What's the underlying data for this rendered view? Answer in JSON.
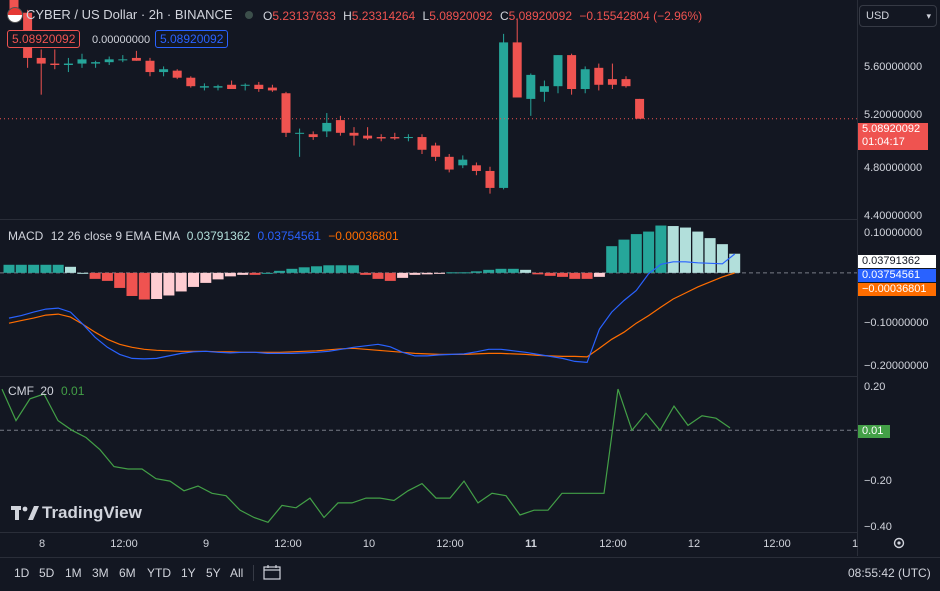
{
  "header": {
    "symbol_title": "CYBER / US Dollar · 2h · BINANCE",
    "o_label": "O",
    "o_value": "5.23137633",
    "h_label": "H",
    "h_value": "5.23314264",
    "l_label": "L",
    "l_value": "5.08920092",
    "c_label": "C",
    "c_value": "5.08920092",
    "change": "−0.15542804 (−2.96%)",
    "sell_price": "5.08920092",
    "spread": "0.00000000",
    "buy_price": "5.08920092",
    "currency": "USD"
  },
  "colors": {
    "background": "#131722",
    "up": "#26a69a",
    "down": "#ef5350",
    "macd_line": "#2962ff",
    "signal_line": "#ff6d00",
    "cmf_line": "#43a047",
    "hist_light_up": "#b2dfdb",
    "hist_light_down": "#ffcdd2"
  },
  "price_axis": {
    "ticks": [
      "5.60000000",
      "5.20000000",
      "4.80000000",
      "4.40000000"
    ],
    "last_price": "5.08920092",
    "countdown": "01:04:17"
  },
  "macd": {
    "label": "MACD",
    "params": "12 26 close 9 EMA EMA",
    "hist_value": "0.03791362",
    "macd_value": "0.03754561",
    "signal_value": "−0.00036801",
    "ticks": [
      "0.10000000",
      "−0.10000000",
      "−0.20000000"
    ]
  },
  "cmf": {
    "label": "CMF",
    "params": "20",
    "value": "0.01",
    "ticks": [
      "0.20",
      "−0.20",
      "−0.40"
    ]
  },
  "time_axis": {
    "labels": [
      "8",
      "12:00",
      "9",
      "12:00",
      "10",
      "12:00",
      "11",
      "12:00",
      "12",
      "12:00",
      "1"
    ]
  },
  "watermark": "TradingView",
  "bottom_bar": {
    "ranges": [
      "1D",
      "5D",
      "1M",
      "3M",
      "6M",
      "YTD",
      "1Y",
      "5Y",
      "All"
    ],
    "clock": "08:55:42 (UTC)"
  },
  "chart_data": [
    {
      "type": "candlestick",
      "title": "CYBER / US Dollar · 2h · BINANCE",
      "ylim": [
        4.38,
        5.93
      ],
      "candles": [
        {
          "o": 5.98,
          "h": 6.03,
          "l": 5.83,
          "c": 5.84
        },
        {
          "o": 5.84,
          "h": 5.86,
          "l": 5.45,
          "c": 5.52
        },
        {
          "o": 5.52,
          "h": 5.58,
          "l": 5.26,
          "c": 5.48
        },
        {
          "o": 5.48,
          "h": 5.58,
          "l": 5.44,
          "c": 5.47
        },
        {
          "o": 5.47,
          "h": 5.52,
          "l": 5.42,
          "c": 5.48
        },
        {
          "o": 5.48,
          "h": 5.55,
          "l": 5.45,
          "c": 5.51
        },
        {
          "o": 5.48,
          "h": 5.5,
          "l": 5.45,
          "c": 5.49
        },
        {
          "o": 5.49,
          "h": 5.53,
          "l": 5.47,
          "c": 5.51
        },
        {
          "o": 5.51,
          "h": 5.54,
          "l": 5.49,
          "c": 5.51
        },
        {
          "o": 5.52,
          "h": 5.57,
          "l": 5.5,
          "c": 5.5
        },
        {
          "o": 5.5,
          "h": 5.52,
          "l": 5.39,
          "c": 5.42
        },
        {
          "o": 5.42,
          "h": 5.46,
          "l": 5.39,
          "c": 5.44
        },
        {
          "o": 5.43,
          "h": 5.44,
          "l": 5.37,
          "c": 5.38
        },
        {
          "o": 5.38,
          "h": 5.39,
          "l": 5.31,
          "c": 5.32
        },
        {
          "o": 5.31,
          "h": 5.34,
          "l": 5.29,
          "c": 5.32
        },
        {
          "o": 5.31,
          "h": 5.33,
          "l": 5.29,
          "c": 5.32
        },
        {
          "o": 5.33,
          "h": 5.36,
          "l": 5.3,
          "c": 5.3
        },
        {
          "o": 5.33,
          "h": 5.34,
          "l": 5.29,
          "c": 5.33
        },
        {
          "o": 5.33,
          "h": 5.35,
          "l": 5.28,
          "c": 5.3
        },
        {
          "o": 5.31,
          "h": 5.33,
          "l": 5.28,
          "c": 5.29
        },
        {
          "o": 5.27,
          "h": 5.28,
          "l": 4.96,
          "c": 4.99
        },
        {
          "o": 4.99,
          "h": 5.02,
          "l": 4.82,
          "c": 4.99
        },
        {
          "o": 4.98,
          "h": 5.0,
          "l": 4.94,
          "c": 4.96
        },
        {
          "o": 5.0,
          "h": 5.13,
          "l": 4.96,
          "c": 5.06
        },
        {
          "o": 5.08,
          "h": 5.11,
          "l": 4.97,
          "c": 4.99
        },
        {
          "o": 4.99,
          "h": 5.03,
          "l": 4.9,
          "c": 4.97
        },
        {
          "o": 4.97,
          "h": 5.03,
          "l": 4.94,
          "c": 4.95
        },
        {
          "o": 4.96,
          "h": 4.98,
          "l": 4.93,
          "c": 4.95
        },
        {
          "o": 4.96,
          "h": 4.99,
          "l": 4.94,
          "c": 4.95
        },
        {
          "o": 4.96,
          "h": 4.98,
          "l": 4.93,
          "c": 4.96
        },
        {
          "o": 4.96,
          "h": 4.98,
          "l": 4.84,
          "c": 4.87
        },
        {
          "o": 4.9,
          "h": 4.92,
          "l": 4.79,
          "c": 4.82
        },
        {
          "o": 4.82,
          "h": 4.84,
          "l": 4.71,
          "c": 4.73
        },
        {
          "o": 4.76,
          "h": 4.83,
          "l": 4.74,
          "c": 4.8
        },
        {
          "o": 4.76,
          "h": 4.78,
          "l": 4.69,
          "c": 4.72
        },
        {
          "o": 4.72,
          "h": 4.75,
          "l": 4.56,
          "c": 4.6
        },
        {
          "o": 4.6,
          "h": 5.69,
          "l": 4.59,
          "c": 5.63
        },
        {
          "o": 5.63,
          "h": 5.8,
          "l": 5.25,
          "c": 5.24
        },
        {
          "o": 5.23,
          "h": 5.41,
          "l": 5.11,
          "c": 5.4
        },
        {
          "o": 5.28,
          "h": 5.36,
          "l": 5.21,
          "c": 5.32
        },
        {
          "o": 5.32,
          "h": 5.54,
          "l": 5.27,
          "c": 5.54
        },
        {
          "o": 5.54,
          "h": 5.55,
          "l": 5.26,
          "c": 5.3
        },
        {
          "o": 5.3,
          "h": 5.46,
          "l": 5.27,
          "c": 5.44
        },
        {
          "o": 5.45,
          "h": 5.48,
          "l": 5.29,
          "c": 5.33
        },
        {
          "o": 5.37,
          "h": 5.48,
          "l": 5.3,
          "c": 5.33
        },
        {
          "o": 5.37,
          "h": 5.39,
          "l": 5.31,
          "c": 5.32
        },
        {
          "o": 5.23,
          "h": 5.23,
          "l": 5.09,
          "c": 5.09
        }
      ]
    },
    {
      "type": "bar+line",
      "title": "MACD 12 26 close 9 EMA EMA",
      "ylim": [
        -0.205,
        0.105
      ],
      "series": [
        {
          "name": "Histogram",
          "values": [
            0.016,
            0.016,
            0.016,
            0.016,
            0.016,
            0.012,
            0.0,
            -0.012,
            -0.016,
            -0.03,
            -0.046,
            -0.053,
            -0.052,
            -0.045,
            -0.037,
            -0.028,
            -0.02,
            -0.013,
            -0.007,
            -0.004,
            -0.004,
            0.0,
            0.004,
            0.008,
            0.011,
            0.013,
            0.015,
            0.015,
            0.015,
            -0.004,
            -0.012,
            -0.016,
            -0.01,
            -0.004,
            -0.003,
            -0.001,
            0.001,
            0.001,
            0.003,
            0.006,
            0.008,
            0.008,
            0.006,
            -0.003,
            -0.006,
            -0.008,
            -0.012,
            -0.012,
            -0.008,
            0.053,
            0.066,
            0.077,
            0.082,
            0.094,
            0.093,
            0.09,
            0.082,
            0.069,
            0.057,
            0.038
          ]
        },
        {
          "name": "MACD",
          "values": [
            -0.09,
            -0.085,
            -0.078,
            -0.072,
            -0.07,
            -0.078,
            -0.102,
            -0.128,
            -0.148,
            -0.162,
            -0.17,
            -0.171,
            -0.17,
            -0.165,
            -0.16,
            -0.157,
            -0.156,
            -0.158,
            -0.159,
            -0.158,
            -0.158,
            -0.16,
            -0.16,
            -0.16,
            -0.159,
            -0.158,
            -0.156,
            -0.152,
            -0.148,
            -0.145,
            -0.142,
            -0.147,
            -0.158,
            -0.165,
            -0.165,
            -0.163,
            -0.162,
            -0.161,
            -0.157,
            -0.152,
            -0.152,
            -0.155,
            -0.158,
            -0.162,
            -0.166,
            -0.17,
            -0.176,
            -0.178,
            -0.112,
            -0.078,
            -0.055,
            -0.035,
            -0.002,
            0.017,
            0.022,
            0.022,
            0.02,
            0.019,
            0.018,
            0.0375
          ]
        },
        {
          "name": "Signal",
          "values": [
            -0.1,
            -0.095,
            -0.09,
            -0.084,
            -0.082,
            -0.088,
            -0.102,
            -0.118,
            -0.132,
            -0.142,
            -0.148,
            -0.152,
            -0.154,
            -0.155,
            -0.156,
            -0.156,
            -0.156,
            -0.157,
            -0.157,
            -0.158,
            -0.158,
            -0.158,
            -0.158,
            -0.157,
            -0.156,
            -0.155,
            -0.153,
            -0.151,
            -0.15,
            -0.152,
            -0.154,
            -0.156,
            -0.158,
            -0.16,
            -0.161,
            -0.162,
            -0.162,
            -0.162,
            -0.161,
            -0.16,
            -0.16,
            -0.161,
            -0.162,
            -0.164,
            -0.165,
            -0.166,
            -0.166,
            -0.167,
            -0.15,
            -0.132,
            -0.118,
            -0.1,
            -0.085,
            -0.068,
            -0.052,
            -0.04,
            -0.028,
            -0.018,
            -0.008,
            -0.0004
          ]
        }
      ]
    },
    {
      "type": "line",
      "title": "CMF 20",
      "ylim": [
        -0.42,
        0.22
      ],
      "series": [
        {
          "name": "CMF",
          "values": [
            0.17,
            0.04,
            0.13,
            0.15,
            0.04,
            0.0,
            -0.03,
            -0.08,
            -0.15,
            -0.16,
            -0.16,
            -0.2,
            -0.21,
            -0.25,
            -0.23,
            -0.26,
            -0.27,
            -0.33,
            -0.36,
            -0.38,
            -0.31,
            -0.32,
            -0.28,
            -0.36,
            -0.3,
            -0.3,
            -0.28,
            -0.28,
            -0.29,
            -0.25,
            -0.22,
            -0.28,
            -0.28,
            -0.21,
            -0.3,
            -0.26,
            -0.27,
            -0.35,
            -0.33,
            -0.33,
            -0.26,
            -0.26,
            -0.26,
            -0.26,
            0.17,
            0.0,
            0.07,
            0.0,
            0.1,
            0.02,
            0.06,
            0.05,
            0.01
          ]
        }
      ]
    }
  ]
}
